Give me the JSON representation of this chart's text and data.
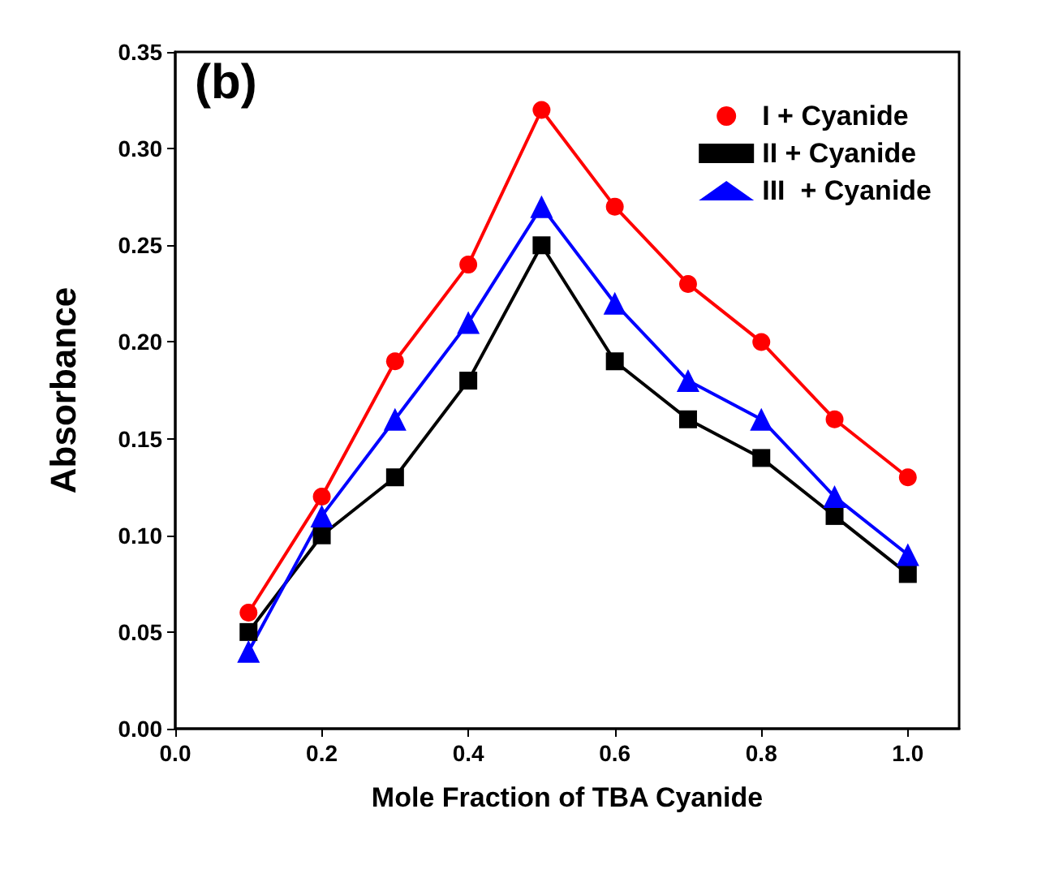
{
  "chart_data": {
    "type": "line",
    "xlabel": "Mole Fraction of TBA Cyanide",
    "ylabel": "Absorbance",
    "annotations": [
      "(b)"
    ],
    "x": [
      0.1,
      0.2,
      0.3,
      0.4,
      0.5,
      0.6,
      0.7,
      0.8,
      0.9,
      1.0
    ],
    "series": [
      {
        "name": "I + Cyanide",
        "color": "#ff0000",
        "marker": "circle",
        "values": [
          0.06,
          0.12,
          0.19,
          0.24,
          0.32,
          0.27,
          0.23,
          0.2,
          0.16,
          0.13
        ]
      },
      {
        "name": "II + Cyanide",
        "color": "#000000",
        "marker": "square",
        "values": [
          0.05,
          0.1,
          0.13,
          0.18,
          0.25,
          0.19,
          0.16,
          0.14,
          0.11,
          0.08
        ]
      },
      {
        "name": "III  + Cyanide",
        "color": "#0000ff",
        "marker": "triangle",
        "values": [
          0.04,
          0.11,
          0.16,
          0.21,
          0.27,
          0.22,
          0.18,
          0.16,
          0.12,
          0.09
        ]
      }
    ],
    "xlim": [
      0,
      1.07
    ],
    "xticks": [
      {
        "value": 0,
        "label": "0.0"
      },
      {
        "value": 0.2,
        "label": "0.2"
      },
      {
        "value": 0.4,
        "label": "0.4"
      },
      {
        "value": 0.6,
        "label": "0.6"
      },
      {
        "value": 0.8,
        "label": "0.8"
      },
      {
        "value": 1,
        "label": "1.0"
      }
    ],
    "ylim": [
      0,
      0.35
    ],
    "yticks": [
      {
        "value": 0,
        "label": "0.00"
      },
      {
        "value": 0.05,
        "label": "0.05"
      },
      {
        "value": 0.1,
        "label": "0.10"
      },
      {
        "value": 0.15,
        "label": "0.15"
      },
      {
        "value": 0.2,
        "label": "0.20"
      },
      {
        "value": 0.25,
        "label": "0.25"
      },
      {
        "value": 0.3,
        "label": "0.30"
      },
      {
        "value": 0.35,
        "label": "0.35"
      }
    ],
    "grid": false,
    "legend": "top right",
    "line_style": "solid"
  }
}
